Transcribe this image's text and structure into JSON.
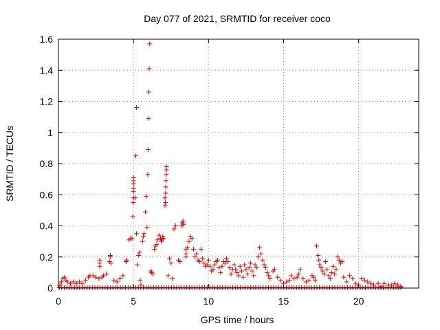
{
  "chart_data": {
    "type": "scatter",
    "title": "Day 077 of 2021, SRMTID for receiver coco",
    "xlabel": "GPS time / hours",
    "ylabel": "SRMTID / TECUs",
    "xlim": [
      0,
      24
    ],
    "ylim": [
      0,
      1.6
    ],
    "xticks": [
      0,
      5,
      10,
      15,
      20
    ],
    "xtick_labels": [
      "0",
      "5",
      "10",
      "15",
      "20"
    ],
    "yticks": [
      0,
      0.2,
      0.4,
      0.6,
      0.8,
      1,
      1.2,
      1.4,
      1.6
    ],
    "ytick_labels": [
      "0",
      "0.2",
      "0.4",
      "0.6",
      "0.8",
      "1",
      "1.2",
      "1.4",
      "1.6"
    ],
    "grid": true,
    "marker": "+",
    "colors": {
      "points": "#e00000",
      "grid": "#a0a0a0",
      "axis": "#000000"
    },
    "series": [
      {
        "name": "SRMTID",
        "points": [
          [
            0.1,
            0.02
          ],
          [
            0.2,
            0.04
          ],
          [
            0.3,
            0.06
          ],
          [
            0.4,
            0.07
          ],
          [
            0.5,
            0.05
          ],
          [
            0.6,
            0.04
          ],
          [
            0.8,
            0.03
          ],
          [
            1.0,
            0.04
          ],
          [
            1.2,
            0.03
          ],
          [
            1.4,
            0.04
          ],
          [
            1.6,
            0.03
          ],
          [
            1.8,
            0.05
          ],
          [
            2.0,
            0.07
          ],
          [
            2.1,
            0.08
          ],
          [
            2.3,
            0.08
          ],
          [
            2.5,
            0.07
          ],
          [
            2.7,
            0.06
          ],
          [
            2.9,
            0.07
          ],
          [
            3.0,
            0.08
          ],
          [
            3.2,
            0.09
          ],
          [
            2.75,
            0.14
          ],
          [
            2.75,
            0.16
          ],
          [
            2.75,
            0.18
          ],
          [
            3.4,
            0.17
          ],
          [
            3.45,
            0.2
          ],
          [
            3.45,
            0.21
          ],
          [
            3.5,
            0.16
          ],
          [
            3.7,
            0.05
          ],
          [
            3.9,
            0.04
          ],
          [
            4.1,
            0.06
          ],
          [
            4.3,
            0.08
          ],
          [
            4.5,
            0.17
          ],
          [
            4.55,
            0.18
          ],
          [
            4.7,
            0.31
          ],
          [
            4.8,
            0.32
          ],
          [
            4.9,
            0.32
          ],
          [
            4.95,
            0.46
          ],
          [
            4.98,
            0.55
          ],
          [
            5.0,
            0.58
          ],
          [
            5.0,
            0.62
          ],
          [
            5.0,
            0.64
          ],
          [
            5.0,
            0.67
          ],
          [
            5.0,
            0.69
          ],
          [
            5.0,
            0.71
          ],
          [
            5.1,
            0.58
          ],
          [
            5.15,
            0.85
          ],
          [
            5.2,
            1.16
          ],
          [
            5.2,
            0.35
          ],
          [
            5.25,
            0.15
          ],
          [
            5.35,
            0.21
          ],
          [
            5.4,
            0.23
          ],
          [
            5.45,
            0.05
          ],
          [
            5.5,
            0.02
          ],
          [
            5.6,
            0.3
          ],
          [
            5.65,
            0.33
          ],
          [
            5.7,
            0.35
          ],
          [
            5.8,
            0.49
          ],
          [
            5.85,
            0.59
          ],
          [
            5.9,
            0.39
          ],
          [
            5.95,
            0.73
          ],
          [
            5.97,
            0.89
          ],
          [
            6.0,
            1.09
          ],
          [
            6.02,
            1.26
          ],
          [
            6.05,
            1.41
          ],
          [
            6.08,
            1.57
          ],
          [
            6.15,
            0.11
          ],
          [
            6.2,
            0.1
          ],
          [
            6.3,
            0.09
          ],
          [
            6.4,
            0.25
          ],
          [
            6.45,
            0.27
          ],
          [
            6.55,
            0.28
          ],
          [
            6.6,
            0.31
          ],
          [
            6.7,
            0.34
          ],
          [
            6.8,
            0.32
          ],
          [
            6.85,
            0.3
          ],
          [
            6.9,
            0.31
          ],
          [
            6.95,
            0.33
          ],
          [
            7.0,
            0.32
          ],
          [
            7.1,
            0.58
          ],
          [
            7.1,
            0.53
          ],
          [
            7.12,
            0.55
          ],
          [
            7.14,
            0.61
          ],
          [
            7.15,
            0.65
          ],
          [
            7.16,
            0.69
          ],
          [
            7.18,
            0.73
          ],
          [
            7.2,
            0.76
          ],
          [
            7.2,
            0.78
          ],
          [
            7.3,
            0.08
          ],
          [
            7.4,
            0.19
          ],
          [
            7.5,
            0.16
          ],
          [
            7.6,
            0.06
          ],
          [
            7.7,
            0.38
          ],
          [
            7.8,
            0.4
          ],
          [
            8.0,
            0.18
          ],
          [
            8.1,
            0.17
          ],
          [
            8.2,
            0.4
          ],
          [
            8.25,
            0.42
          ],
          [
            8.3,
            0.43
          ],
          [
            8.35,
            0.41
          ],
          [
            8.5,
            0.22
          ],
          [
            8.5,
            0.2
          ],
          [
            8.5,
            0.25
          ],
          [
            8.6,
            0.26
          ],
          [
            8.7,
            0.3
          ],
          [
            8.8,
            0.33
          ],
          [
            8.9,
            0.32
          ],
          [
            9.0,
            0.25
          ],
          [
            9.1,
            0.2
          ],
          [
            9.2,
            0.22
          ],
          [
            9.3,
            0.18
          ],
          [
            9.4,
            0.17
          ],
          [
            9.5,
            0.25
          ],
          [
            9.6,
            0.19
          ],
          [
            9.7,
            0.16
          ],
          [
            9.8,
            0.14
          ],
          [
            9.9,
            0.15
          ],
          [
            10.0,
            0.18
          ],
          [
            10.1,
            0.14
          ],
          [
            10.2,
            0.11
          ],
          [
            10.3,
            0.12
          ],
          [
            10.4,
            0.15
          ],
          [
            10.5,
            0.17
          ],
          [
            10.6,
            0.18
          ],
          [
            10.7,
            0.13
          ],
          [
            10.8,
            0.1
          ],
          [
            10.9,
            0.14
          ],
          [
            11.0,
            0.17
          ],
          [
            11.1,
            0.16
          ],
          [
            11.2,
            0.19
          ],
          [
            11.3,
            0.17
          ],
          [
            11.4,
            0.13
          ],
          [
            11.5,
            0.09
          ],
          [
            11.6,
            0.12
          ],
          [
            11.7,
            0.15
          ],
          [
            11.8,
            0.12
          ],
          [
            11.9,
            0.1
          ],
          [
            12.0,
            0.08
          ],
          [
            12.1,
            0.14
          ],
          [
            12.2,
            0.11
          ],
          [
            12.3,
            0.07
          ],
          [
            12.4,
            0.15
          ],
          [
            12.5,
            0.12
          ],
          [
            12.6,
            0.09
          ],
          [
            12.7,
            0.13
          ],
          [
            12.8,
            0.16
          ],
          [
            12.9,
            0.11
          ],
          [
            13.0,
            0.08
          ],
          [
            13.1,
            0.15
          ],
          [
            13.2,
            0.13
          ],
          [
            13.3,
            0.2
          ],
          [
            13.4,
            0.26
          ],
          [
            13.5,
            0.22
          ],
          [
            13.6,
            0.18
          ],
          [
            13.7,
            0.15
          ],
          [
            13.8,
            0.13
          ],
          [
            13.9,
            0.1
          ],
          [
            14.0,
            0.08
          ],
          [
            14.1,
            0.06
          ],
          [
            14.3,
            0.11
          ],
          [
            14.4,
            0.12
          ],
          [
            14.6,
            0.07
          ],
          [
            14.8,
            0.05
          ],
          [
            15.0,
            0.03
          ],
          [
            15.2,
            0.04
          ],
          [
            15.4,
            0.05
          ],
          [
            15.5,
            0.08
          ],
          [
            15.7,
            0.06
          ],
          [
            15.9,
            0.07
          ],
          [
            16.0,
            0.09
          ],
          [
            16.1,
            0.12
          ],
          [
            16.3,
            0.06
          ],
          [
            16.5,
            0.04
          ],
          [
            16.7,
            0.05
          ],
          [
            16.9,
            0.08
          ],
          [
            17.0,
            0.07
          ],
          [
            17.1,
            0.05
          ],
          [
            17.2,
            0.27
          ],
          [
            17.3,
            0.21
          ],
          [
            17.35,
            0.18
          ],
          [
            17.4,
            0.15
          ],
          [
            17.5,
            0.13
          ],
          [
            17.6,
            0.11
          ],
          [
            17.7,
            0.09
          ],
          [
            17.8,
            0.17
          ],
          [
            17.9,
            0.12
          ],
          [
            18.0,
            0.08
          ],
          [
            18.1,
            0.06
          ],
          [
            18.2,
            0.1
          ],
          [
            18.3,
            0.14
          ],
          [
            18.4,
            0.09
          ],
          [
            18.5,
            0.12
          ],
          [
            18.6,
            0.2
          ],
          [
            18.7,
            0.18
          ],
          [
            18.8,
            0.16
          ],
          [
            18.9,
            0.17
          ],
          [
            19.0,
            0.07
          ],
          [
            19.2,
            0.04
          ],
          [
            19.4,
            0.08
          ],
          [
            19.6,
            0.06
          ],
          [
            19.8,
            0.03
          ],
          [
            20.0,
            0.02
          ],
          [
            20.2,
            0.06
          ],
          [
            20.4,
            0.05
          ],
          [
            20.6,
            0.04
          ],
          [
            20.8,
            0.03
          ],
          [
            21.0,
            0.02
          ],
          [
            21.3,
            0.03
          ],
          [
            21.5,
            0.01
          ],
          [
            21.7,
            0.03
          ],
          [
            22.0,
            0.02
          ],
          [
            22.2,
            0.02
          ],
          [
            22.4,
            0.03
          ],
          [
            22.6,
            0.02
          ],
          [
            22.8,
            0.01
          ]
        ]
      }
    ]
  }
}
